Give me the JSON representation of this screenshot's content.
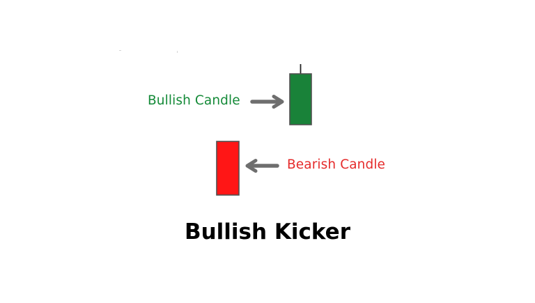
{
  "diagram": {
    "title": "Bullish Kicker",
    "bullish_label": "Bullish Candle",
    "bearish_label": "Bearish Candle"
  },
  "colors": {
    "bullish_text": "#148a38",
    "bearish_text": "#e52b2b",
    "bullish_candle": "#198239",
    "bearish_candle": "#ff1616",
    "candle_outline": "#505050",
    "arrow": "#6e6e6e",
    "title": "#000000"
  }
}
